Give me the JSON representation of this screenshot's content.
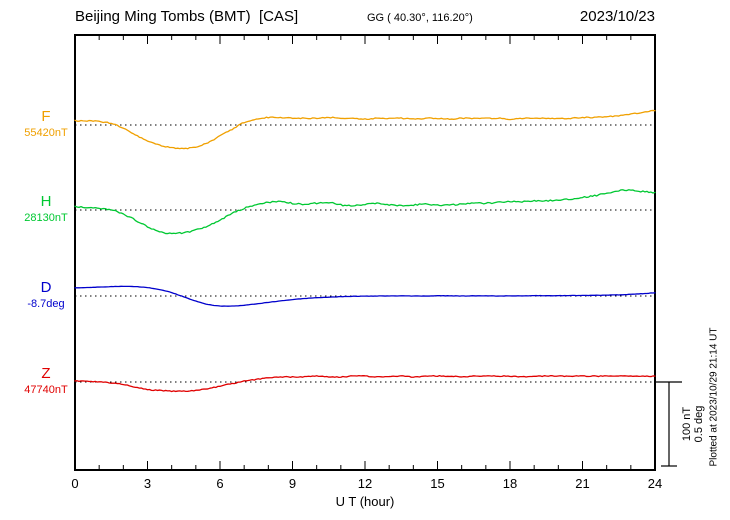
{
  "header": {
    "title": "Beijing Ming Tombs (BMT)  [CAS]",
    "coordinates": "GG ( 40.30°, 116.20°)",
    "date": "2023/10/23"
  },
  "axes": {
    "xlabel": "U T (hour)",
    "xticks": [
      "0",
      "3",
      "6",
      "9",
      "12",
      "15",
      "18",
      "21",
      "24"
    ]
  },
  "scalebar": {
    "nt_label": "100 nT",
    "deg_label": "0.5 deg"
  },
  "plotted_at": "Plotted at 2023/10/29 21:14 UT",
  "chart_data": {
    "type": "line",
    "title": "Beijing Ming Tombs (BMT) [CAS] magnetogram, 2023/10/23",
    "xlabel": "U T (hour)",
    "x_range_hours": [
      0,
      24
    ],
    "x_step_hours": 0.5,
    "grid": "dotted baselines per channel",
    "scale": {
      "nT_per_div": 100,
      "deg_per_div": 0.5
    },
    "series": [
      {
        "name": "F",
        "unit": "nT",
        "baseline_label": "55420nT",
        "baseline_value": 55420,
        "color": "#f0a000",
        "offsets": [
          5,
          5,
          4,
          2,
          -4,
          -12,
          -19,
          -24,
          -27,
          -28,
          -26,
          -21,
          -13,
          -5,
          3,
          7,
          9,
          9,
          8,
          8,
          8,
          9,
          8,
          8,
          7,
          8,
          8,
          8,
          7,
          8,
          8,
          7,
          8,
          8,
          8,
          8,
          7,
          8,
          8,
          8,
          8,
          8,
          9,
          9,
          10,
          11,
          13,
          15,
          17
        ]
      },
      {
        "name": "H",
        "unit": "nT",
        "baseline_label": "28130nT",
        "baseline_value": 28130,
        "color": "#00c832",
        "offsets": [
          4,
          3,
          2,
          0,
          -5,
          -12,
          -20,
          -26,
          -28,
          -27,
          -24,
          -19,
          -12,
          -4,
          2,
          6,
          9,
          10,
          8,
          7,
          8,
          9,
          6,
          5,
          7,
          8,
          6,
          5,
          6,
          7,
          6,
          6,
          7,
          8,
          8,
          9,
          10,
          10,
          11,
          11,
          12,
          13,
          15,
          17,
          20,
          23,
          24,
          22,
          21
        ]
      },
      {
        "name": "D",
        "unit": "deg",
        "baseline_label": "-8.7deg",
        "baseline_value": -8.7,
        "color": "#0000cc",
        "offsets": [
          0.048,
          0.05,
          0.053,
          0.056,
          0.058,
          0.056,
          0.05,
          0.038,
          0.02,
          -0.005,
          -0.03,
          -0.05,
          -0.059,
          -0.06,
          -0.055,
          -0.047,
          -0.038,
          -0.029,
          -0.021,
          -0.015,
          -0.01,
          -0.007,
          -0.004,
          -0.002,
          -0.001,
          0,
          0,
          0.001,
          0,
          0,
          0.001,
          0.001,
          0,
          0.001,
          0.001,
          0,
          0.001,
          0.001,
          0.002,
          0.002,
          0.002,
          0.003,
          0.003,
          0.004,
          0.005,
          0.007,
          0.01,
          0.014,
          0.019
        ]
      },
      {
        "name": "Z",
        "unit": "nT",
        "baseline_label": "47740nT",
        "baseline_value": 47740,
        "color": "#e00000",
        "offsets": [
          1,
          1,
          0,
          -1,
          -3,
          -6,
          -9,
          -10,
          -11,
          -11,
          -10,
          -8,
          -5,
          -2,
          1,
          3,
          5,
          6,
          6,
          6,
          7,
          6,
          6,
          7,
          7,
          6,
          7,
          7,
          6,
          7,
          7,
          7,
          6,
          7,
          7,
          7,
          7,
          6,
          7,
          7,
          7,
          7,
          7,
          7,
          7,
          7,
          7,
          7,
          7
        ]
      }
    ]
  }
}
